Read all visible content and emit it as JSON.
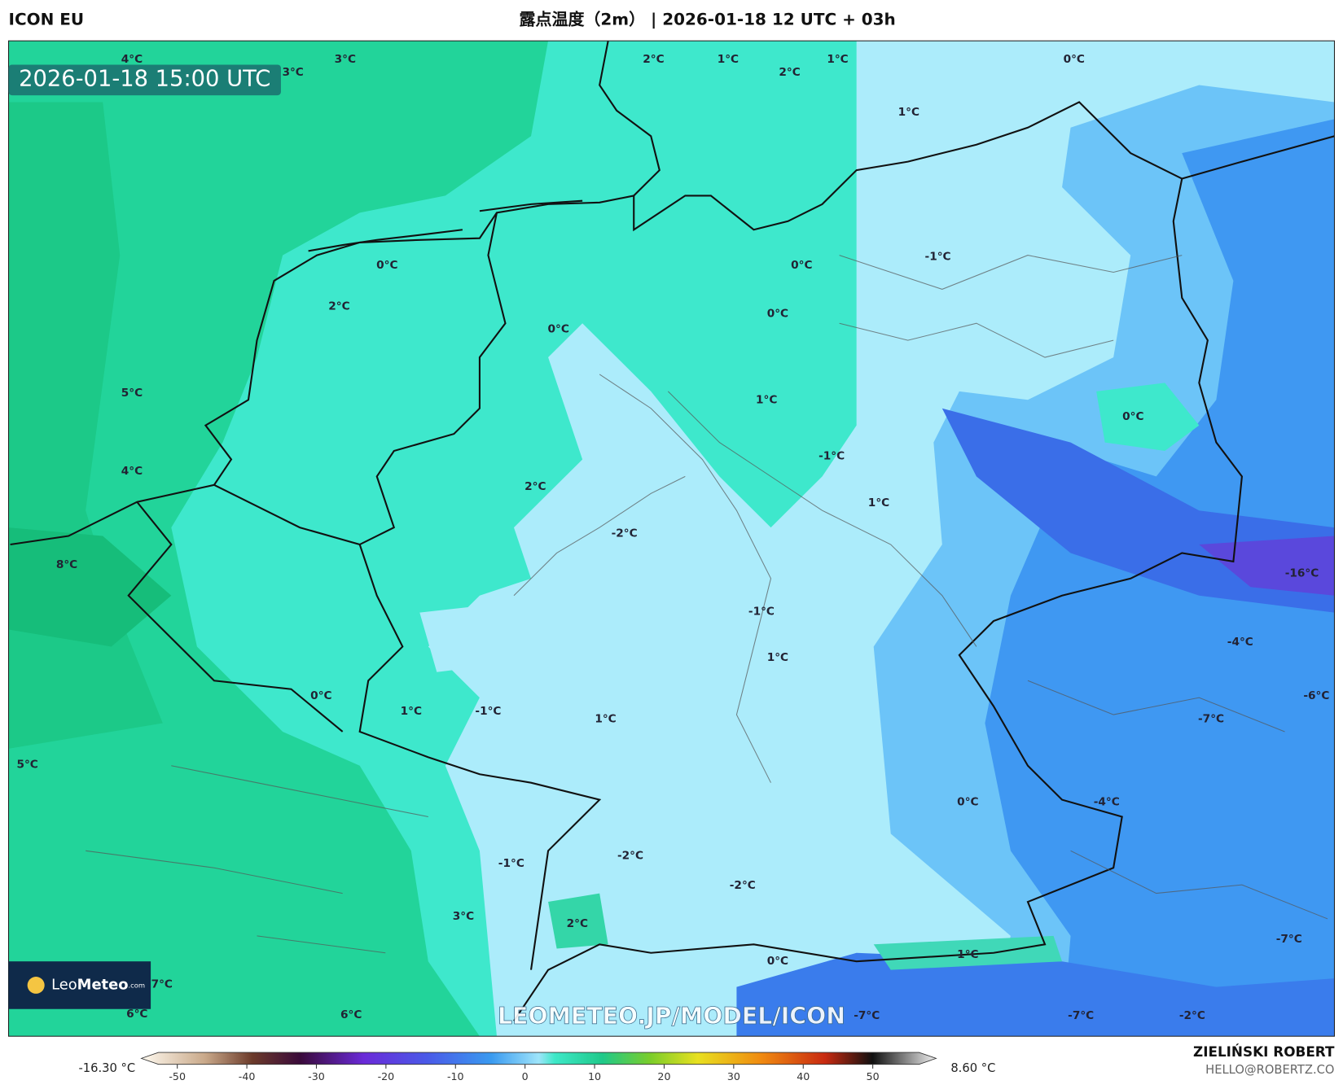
{
  "header": {
    "model": "ICON EU",
    "title": "露点温度（2m） | 2026-01-18 12 UTC + 03h"
  },
  "valid_time": "2026-01-18 15:00 UTC",
  "map_labels": [
    "4°C",
    "3°C",
    "3°C",
    "2°C",
    "1°C",
    "2°C",
    "1°C",
    "0°C",
    "1°C",
    "0°C",
    "2°C",
    "0°C",
    "-1°C",
    "0°C",
    "0°C",
    "5°C",
    "1°C",
    "0°C",
    "-1°C",
    "4°C",
    "2°C",
    "1°C",
    "-2°C",
    "8°C",
    "-16°C",
    "-1°C",
    "-4°C",
    "1°C",
    "0°C",
    "1°C",
    "-1°C",
    "1°C",
    "-6°C",
    "-7°C",
    "5°C",
    "0°C",
    "-4°C",
    "-2°C",
    "-1°C",
    "-2°C",
    "3°C",
    "2°C",
    "-7°C",
    "1°C",
    "0°C",
    "7°C",
    "6°C",
    "6°C",
    "-7°C",
    "-7°C",
    "-2°C"
  ],
  "watermark": "LEOMETEO.JP/MODEL/ICON",
  "logo": {
    "brand_light": "Leo",
    "brand_bold": "Meteo",
    "suffix": ".com"
  },
  "colorbar": {
    "min_label": "-16.30 °C",
    "max_label": "8.60 °C",
    "ticks": [
      -50,
      -40,
      -30,
      -20,
      -10,
      0,
      10,
      20,
      30,
      40,
      50
    ]
  },
  "credit": {
    "name": "ZIELIŃSKI ROBERT",
    "email": "HELLO@ROBERTZ.CO"
  }
}
